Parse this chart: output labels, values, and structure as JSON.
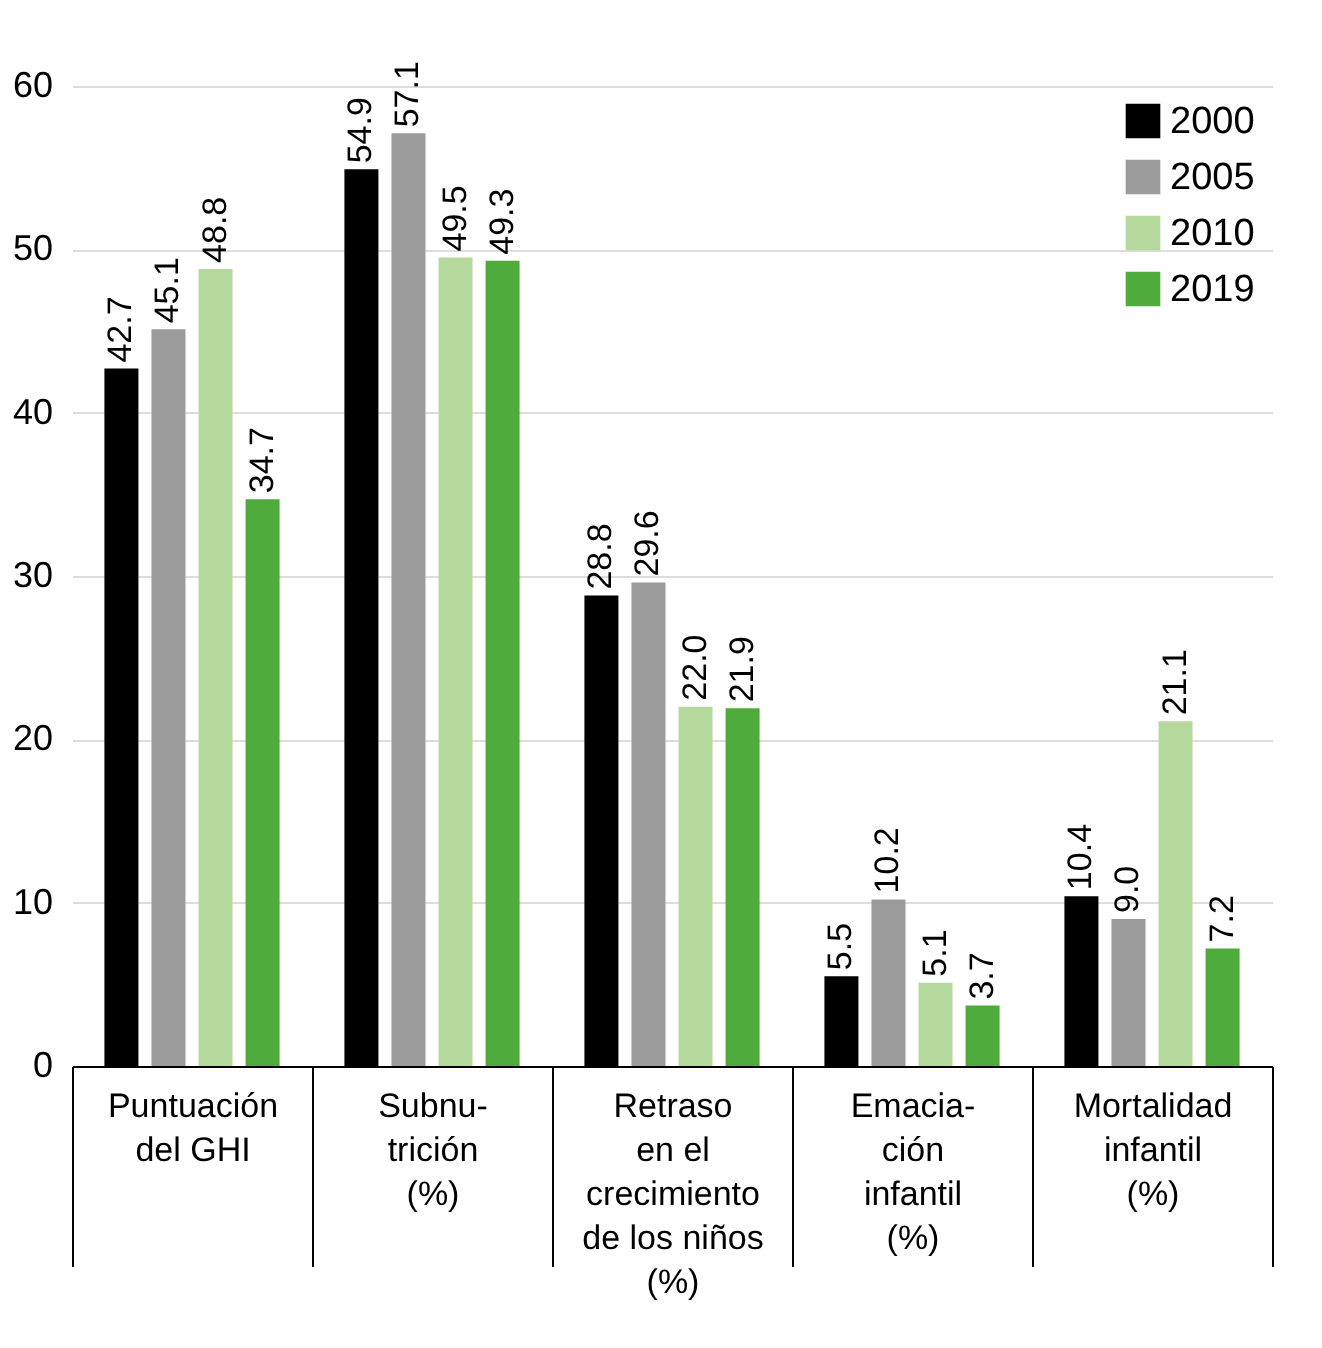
{
  "chart_data": {
    "type": "bar",
    "categories": [
      "Puntuación\ndel GHI",
      "Subnu-\ntrición\n(%)",
      "Retraso\nen el\ncrecimiento\nde los niños\n(%)",
      "Emacia-\nción\ninfantil\n(%)",
      "Mortalidad\ninfantil\n(%)"
    ],
    "series": [
      {
        "name": "2000",
        "color": "#000000",
        "values": [
          42.7,
          54.9,
          28.8,
          5.5,
          10.4
        ],
        "value_labels": [
          "42.7",
          "54.9",
          "28.8",
          "5.5",
          "10.4"
        ]
      },
      {
        "name": "2005",
        "color": "#9b9b9b",
        "values": [
          45.1,
          57.1,
          29.6,
          10.2,
          9
        ],
        "value_labels": [
          "45.1",
          "57.1",
          "29.6",
          "10.2",
          "9.0"
        ]
      },
      {
        "name": "2010",
        "color": "#b5d99c",
        "values": [
          48.8,
          49.5,
          22,
          5.1,
          21.1
        ],
        "value_labels": [
          "48.8",
          "49.5",
          "22.0",
          "5.1",
          "21.1"
        ]
      },
      {
        "name": "2019",
        "color": "#4fac3c",
        "values": [
          34.7,
          49.3,
          21.9,
          3.7,
          7.2
        ],
        "value_labels": [
          "34.7",
          "49.3",
          "21.9",
          "3.7",
          "7.2"
        ]
      }
    ],
    "ylim": [
      0,
      60
    ],
    "yticks": [
      0,
      10,
      20,
      30,
      40,
      50,
      60
    ],
    "grid": "y",
    "legend": "top right"
  }
}
